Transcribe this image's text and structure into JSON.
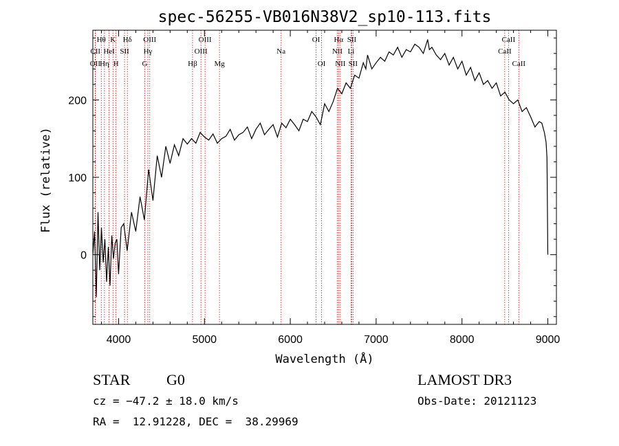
{
  "chart_data": {
    "type": "line",
    "title": "spec-56255-VB016N38V2_sp10-113.fits",
    "xlabel": "Wavelength (Å)",
    "ylabel": "Flux (relative)",
    "xlim": [
      3700,
      9100
    ],
    "ylim": [
      -90,
      290
    ],
    "x_ticks": [
      4000,
      5000,
      6000,
      7000,
      8000,
      9000
    ],
    "y_ticks": [
      0,
      100,
      200
    ],
    "line_color": "#000000",
    "marker_color": "#cc0000",
    "spectrum_x": [
      3700,
      3720,
      3740,
      3760,
      3780,
      3800,
      3820,
      3840,
      3860,
      3880,
      3900,
      3920,
      3940,
      3960,
      3980,
      4000,
      4030,
      4060,
      4100,
      4150,
      4200,
      4250,
      4300,
      4350,
      4400,
      4450,
      4500,
      4550,
      4600,
      4650,
      4700,
      4750,
      4800,
      4850,
      4900,
      4950,
      5000,
      5050,
      5100,
      5150,
      5200,
      5250,
      5300,
      5350,
      5400,
      5450,
      5500,
      5550,
      5600,
      5650,
      5700,
      5750,
      5800,
      5850,
      5900,
      5950,
      6000,
      6050,
      6100,
      6150,
      6200,
      6250,
      6300,
      6350,
      6400,
      6450,
      6500,
      6550,
      6600,
      6650,
      6700,
      6750,
      6800,
      6850,
      6880,
      6900,
      6950,
      7000,
      7050,
      7100,
      7150,
      7200,
      7250,
      7300,
      7350,
      7400,
      7450,
      7500,
      7550,
      7600,
      7620,
      7650,
      7700,
      7750,
      7800,
      7850,
      7900,
      7950,
      8000,
      8050,
      8100,
      8150,
      8200,
      8250,
      8300,
      8350,
      8400,
      8450,
      8500,
      8550,
      8600,
      8650,
      8700,
      8750,
      8800,
      8850,
      8900,
      8930,
      8960,
      8980,
      8990,
      9000
    ],
    "spectrum_y": [
      0,
      30,
      -55,
      55,
      -20,
      35,
      -10,
      20,
      -35,
      10,
      -40,
      25,
      -5,
      15,
      20,
      -25,
      35,
      40,
      5,
      55,
      30,
      75,
      45,
      110,
      70,
      128,
      100,
      140,
      118,
      142,
      128,
      150,
      143,
      150,
      144,
      158,
      152,
      148,
      156,
      144,
      150,
      153,
      162,
      148,
      155,
      158,
      165,
      150,
      162,
      170,
      155,
      162,
      168,
      152,
      170,
      164,
      175,
      168,
      160,
      175,
      172,
      185,
      178,
      168,
      195,
      185,
      198,
      215,
      208,
      222,
      215,
      232,
      228,
      248,
      240,
      258,
      240,
      248,
      255,
      250,
      262,
      258,
      268,
      255,
      265,
      262,
      272,
      268,
      260,
      278,
      265,
      268,
      258,
      252,
      260,
      245,
      255,
      240,
      250,
      232,
      242,
      225,
      235,
      220,
      225,
      215,
      222,
      205,
      210,
      200,
      195,
      200,
      185,
      190,
      178,
      165,
      172,
      170,
      158,
      145,
      125,
      0
    ],
    "lines": [
      {
        "label": "Hθ",
        "wave": 3798,
        "row": 1
      },
      {
        "label": "CII",
        "wave": 3730,
        "row": 2
      },
      {
        "label": "OII",
        "wave": 3727,
        "row": 3
      },
      {
        "label": "K",
        "wave": 3934,
        "row": 1
      },
      {
        "label": "HeI",
        "wave": 3889,
        "row": 2
      },
      {
        "label": "Hη",
        "wave": 3835,
        "row": 3
      },
      {
        "label": "H",
        "wave": 3969,
        "row": 3
      },
      {
        "label": "SII",
        "wave": 4069,
        "row": 2
      },
      {
        "label": "Hδ",
        "wave": 4102,
        "row": 1
      },
      {
        "label": "OIII",
        "wave": 4363,
        "row": 1
      },
      {
        "label": "Hγ",
        "wave": 4341,
        "row": 2
      },
      {
        "label": "G",
        "wave": 4305,
        "row": 3
      },
      {
        "label": "Hβ",
        "wave": 4861,
        "row": 3
      },
      {
        "label": "OIII",
        "wave": 5007,
        "row": 1
      },
      {
        "label": "OIII",
        "wave": 4959,
        "row": 2
      },
      {
        "label": "Mg",
        "wave": 5175,
        "row": 3
      },
      {
        "label": "Na",
        "wave": 5893,
        "row": 2
      },
      {
        "label": "OI",
        "wave": 6300,
        "row": 1
      },
      {
        "label": "OI",
        "wave": 6364,
        "row": 3
      },
      {
        "label": "Hα",
        "wave": 6563,
        "row": 1
      },
      {
        "label": "NII",
        "wave": 6548,
        "row": 2
      },
      {
        "label": "NII",
        "wave": 6583,
        "row": 3
      },
      {
        "label": "SII",
        "wave": 6716,
        "row": 1
      },
      {
        "label": "Li",
        "wave": 6708,
        "row": 2
      },
      {
        "label": "SII",
        "wave": 6731,
        "row": 3
      },
      {
        "label": "CaII",
        "wave": 8542,
        "row": 1
      },
      {
        "label": "CaII",
        "wave": 8498,
        "row": 2
      },
      {
        "label": "CaII",
        "wave": 8662,
        "row": 3
      }
    ]
  },
  "info": {
    "class_label": "STAR",
    "subclass": "G0",
    "cz": "cz = −47.2 ± 18.0 km/s",
    "coords": "RA =  12.91228, DEC =  38.29969",
    "survey": "LAMOST DR3",
    "obs_date": "Obs-Date: 20121123"
  }
}
